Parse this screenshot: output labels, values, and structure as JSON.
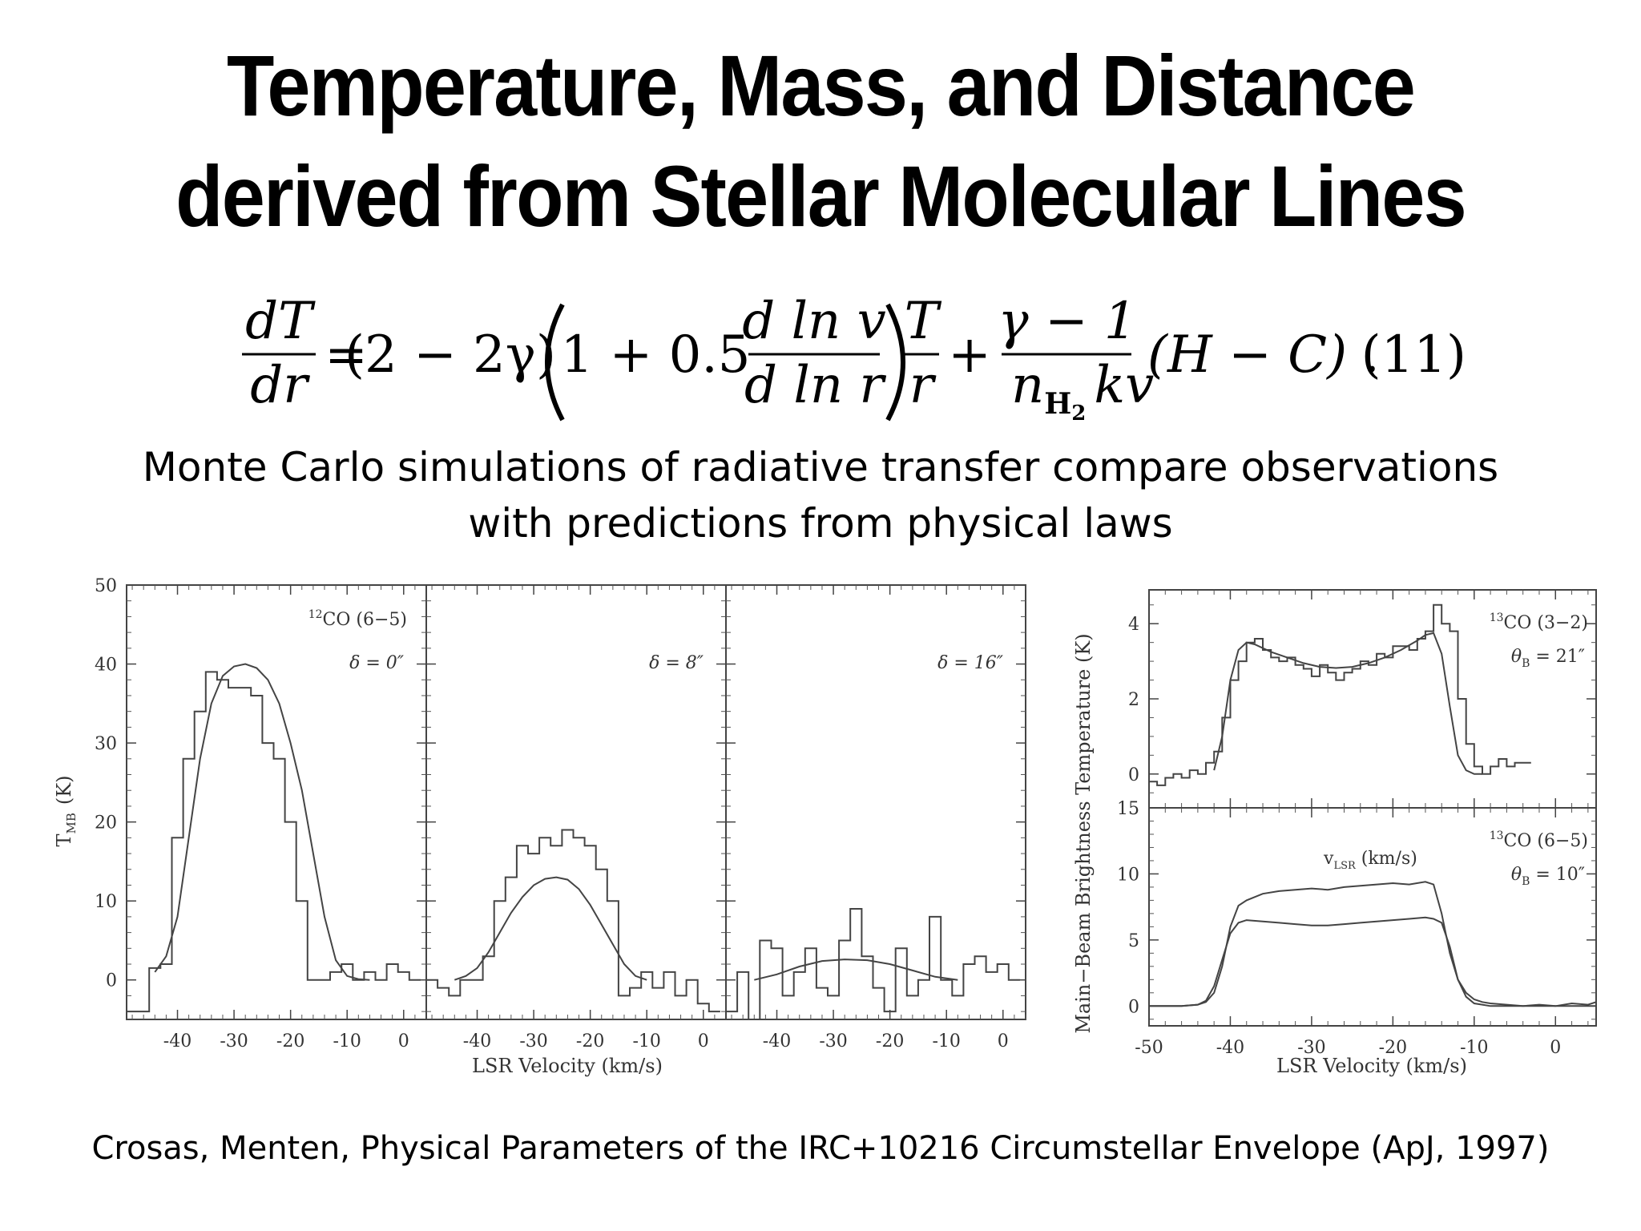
{
  "slide": {
    "title_line1": "Temperature, Mass, and Distance",
    "title_line2": "derived from Stellar Molecular Lines",
    "subtitle_line1": "Monte Carlo simulations of radiative transfer compare observations",
    "subtitle_line2": "with predictions from physical laws",
    "citation": "Crosas, Menten, Physical Parameters of the IRC+10216 Circumstellar Envelope  (ApJ, 1997)"
  },
  "equation": {
    "lhs_num": "dT",
    "lhs_den": "dr",
    "eq": "=",
    "coef": "(2 − 2γ)",
    "inner_one": "1 + 0.5",
    "dlnv": "d ln v",
    "dlnr": "d ln r",
    "T": "T",
    "r": "r",
    "plus": "+",
    "gamma_num": "γ − 1",
    "n_sym": "n",
    "n_sub": "H",
    "n_subsub": "2",
    "kv": "kv",
    "HC": "(H − C) .",
    "number": "(11)"
  },
  "chart_data": [
    {
      "type": "line",
      "ylabel": "T",
      "ylabel_sub": "MB",
      "ylabel_unit": "(K)",
      "xlabel": "LSR Velocity (km/s)",
      "ylim": [
        -5,
        50
      ],
      "yticks": [
        0,
        10,
        20,
        30,
        40,
        50
      ],
      "xticks": [
        -40,
        -30,
        -20,
        -10,
        0
      ],
      "panels": [
        {
          "xlim": [
            -49,
            4
          ],
          "molecule_sup": "12",
          "molecule": "CO (6−5)",
          "offset_label": "δ = 0″",
          "series": [
            {
              "name": "observed",
              "style": "step",
              "x": [
                -49,
                -47,
                -45,
                -43,
                -41,
                -39,
                -37,
                -35,
                -33,
                -31,
                -29,
                -27,
                -25,
                -23,
                -21,
                -19,
                -17,
                -15,
                -13,
                -11,
                -9,
                -7,
                -5,
                -3,
                -1,
                1
              ],
              "y": [
                -4,
                -4,
                1.5,
                2,
                18,
                28,
                34,
                39,
                38,
                37,
                37,
                36,
                30,
                28,
                20,
                10,
                0,
                0,
                1,
                2,
                0,
                1,
                0,
                2,
                1,
                0
              ]
            },
            {
              "name": "model",
              "style": "line",
              "x": [
                -44,
                -42,
                -40,
                -38,
                -36,
                -34,
                -32,
                -30,
                -28,
                -26,
                -24,
                -22,
                -20,
                -18,
                -16,
                -14,
                -12,
                -10,
                -8,
                -6
              ],
              "y": [
                1,
                3,
                8,
                18,
                28,
                35,
                38.5,
                39.7,
                40,
                39.5,
                38,
                35,
                30,
                24,
                16,
                8,
                2.5,
                0.5,
                0.1,
                0
              ]
            }
          ]
        },
        {
          "xlim": [
            -49,
            4
          ],
          "offset_label": "δ = 8″",
          "series": [
            {
              "name": "observed",
              "style": "step",
              "x": [
                -49,
                -47,
                -45,
                -43,
                -41,
                -39,
                -37,
                -35,
                -33,
                -31,
                -29,
                -27,
                -25,
                -23,
                -21,
                -19,
                -17,
                -15,
                -13,
                -11,
                -9,
                -7,
                -5,
                -3,
                -1,
                1
              ],
              "y": [
                0,
                -1,
                -2,
                0,
                0,
                3,
                10,
                13,
                17,
                16,
                18,
                17,
                19,
                18,
                17,
                14,
                10,
                -2,
                -1,
                1,
                -1,
                1,
                -2,
                0,
                -3,
                -4
              ]
            },
            {
              "name": "model",
              "style": "line",
              "x": [
                -44,
                -42,
                -40,
                -38,
                -36,
                -34,
                -32,
                -30,
                -28,
                -26,
                -24,
                -22,
                -20,
                -18,
                -16,
                -14,
                -12,
                -10
              ],
              "y": [
                0,
                0.5,
                1.5,
                3.5,
                6,
                8.5,
                10.5,
                12,
                12.8,
                13,
                12.7,
                11.5,
                9.5,
                7,
                4.5,
                2,
                0.5,
                0
              ]
            }
          ]
        },
        {
          "xlim": [
            -49,
            4
          ],
          "offset_label": "δ = 16″",
          "series": [
            {
              "name": "observed",
              "style": "step",
              "x": [
                -49,
                -47,
                -45,
                -43,
                -41,
                -39,
                -37,
                -35,
                -33,
                -31,
                -29,
                -27,
                -25,
                -23,
                -21,
                -19,
                -17,
                -15,
                -13,
                -11,
                -9,
                -7,
                -5,
                -3,
                -1,
                1
              ],
              "y": [
                -4,
                1,
                -5,
                5,
                4,
                -2,
                1,
                4,
                -1,
                -2,
                5,
                9,
                3,
                -1,
                -4,
                4,
                -2,
                0,
                8,
                0,
                -2,
                2,
                3,
                1,
                2,
                0
              ]
            },
            {
              "name": "model",
              "style": "line",
              "x": [
                -44,
                -40,
                -36,
                -32,
                -28,
                -24,
                -20,
                -16,
                -12,
                -8
              ],
              "y": [
                0,
                0.7,
                1.7,
                2.4,
                2.6,
                2.5,
                2,
                1.2,
                0.4,
                0
              ]
            }
          ]
        }
      ]
    },
    {
      "type": "line",
      "ylabel": "Main−Beam Brightness Temperature (K)",
      "xlabel": "LSR Velocity (km/s)",
      "xlim": [
        -50,
        5
      ],
      "xticks": [
        -50,
        -40,
        -30,
        -20,
        -10,
        0
      ],
      "panels": [
        {
          "ylim": [
            -0.9,
            4.9
          ],
          "yticks": [
            0,
            2,
            4
          ],
          "molecule_sup": "13",
          "molecule": "CO (3−2)",
          "beam_label": "θ",
          "beam_sub": "B",
          "beam_value": " = 21″",
          "series": [
            {
              "name": "observed",
              "style": "step",
              "x": [
                -50,
                -49,
                -48,
                -47,
                -46,
                -45,
                -44,
                -43,
                -42,
                -41,
                -40,
                -39,
                -38,
                -37,
                -36,
                -35,
                -34,
                -33,
                -32,
                -31,
                -30,
                -29,
                -28,
                -27,
                -26,
                -25,
                -24,
                -23,
                -22,
                -21,
                -20,
                -19,
                -18,
                -17,
                -16,
                -15,
                -14,
                -13,
                -12,
                -11,
                -10,
                -9,
                -8,
                -7,
                -6,
                -5,
                -4
              ],
              "y": [
                -0.2,
                -0.3,
                -0.1,
                0,
                -0.1,
                0.1,
                0,
                0.3,
                0.6,
                1.5,
                2.5,
                3,
                3.5,
                3.6,
                3.3,
                3.1,
                3.0,
                3.1,
                2.9,
                2.8,
                2.6,
                2.9,
                2.7,
                2.5,
                2.7,
                2.8,
                3,
                2.9,
                3.2,
                3.1,
                3.4,
                3.4,
                3.3,
                3.6,
                3.8,
                4.5,
                4,
                3.8,
                2,
                0.8,
                0.2,
                0,
                0.2,
                0.4,
                0.2,
                0.3,
                0.3
              ]
            },
            {
              "name": "model",
              "style": "line",
              "x": [
                -42,
                -41,
                -40,
                -39,
                -38,
                -37,
                -35,
                -33,
                -31,
                -29,
                -27,
                -25,
                -23,
                -21,
                -19,
                -17,
                -16,
                -15,
                -14,
                -13,
                -12,
                -11,
                -10,
                -9
              ],
              "y": [
                0.1,
                1,
                2.5,
                3.3,
                3.5,
                3.45,
                3.25,
                3.1,
                2.95,
                2.85,
                2.82,
                2.85,
                2.95,
                3.1,
                3.3,
                3.55,
                3.7,
                3.75,
                3.2,
                1.8,
                0.5,
                0.1,
                0,
                0
              ]
            }
          ]
        },
        {
          "ylim": [
            -1.5,
            15
          ],
          "yticks": [
            0,
            5,
            10,
            15
          ],
          "molecule_sup": "13",
          "molecule": "CO (6−5)",
          "beam_label": "θ",
          "beam_sub": "B",
          "beam_value": " = 10″",
          "annotation_v": "v",
          "annotation_sub": "LSR",
          "annotation_unit": " (km/s)",
          "series": [
            {
              "name": "observed",
              "style": "line",
              "x": [
                -50,
                -46,
                -44,
                -43,
                -42,
                -41,
                -40,
                -39,
                -38,
                -36,
                -34,
                -32,
                -30,
                -28,
                -26,
                -24,
                -22,
                -20,
                -18,
                -16,
                -15,
                -14,
                -13,
                -12,
                -11,
                -10,
                -9,
                -8,
                -6,
                -4,
                -2,
                0,
                2,
                4,
                5
              ],
              "y": [
                0,
                0,
                0.1,
                0.3,
                1,
                3,
                6,
                7.6,
                8,
                8.5,
                8.7,
                8.8,
                8.9,
                8.8,
                9,
                9.1,
                9.2,
                9.3,
                9.2,
                9.4,
                9.2,
                7,
                4,
                2,
                1,
                0.5,
                0.3,
                0.2,
                0.1,
                0,
                0.1,
                0,
                0.2,
                0.1,
                0.3
              ]
            },
            {
              "name": "model",
              "style": "line",
              "x": [
                -50,
                -46,
                -44,
                -43,
                -42,
                -41,
                -40,
                -39,
                -38,
                -36,
                -34,
                -32,
                -30,
                -28,
                -26,
                -24,
                -22,
                -20,
                -18,
                -16,
                -15,
                -14,
                -13,
                -12,
                -11,
                -10,
                -9,
                -8,
                -6,
                -4,
                0,
                5
              ],
              "y": [
                0,
                0,
                0.1,
                0.4,
                1.5,
                3.5,
                5.5,
                6.3,
                6.5,
                6.4,
                6.3,
                6.2,
                6.1,
                6.1,
                6.2,
                6.3,
                6.4,
                6.5,
                6.6,
                6.7,
                6.6,
                6.3,
                4.5,
                2,
                0.7,
                0.2,
                0.1,
                0,
                0,
                0,
                0,
                0
              ]
            }
          ]
        }
      ]
    }
  ]
}
